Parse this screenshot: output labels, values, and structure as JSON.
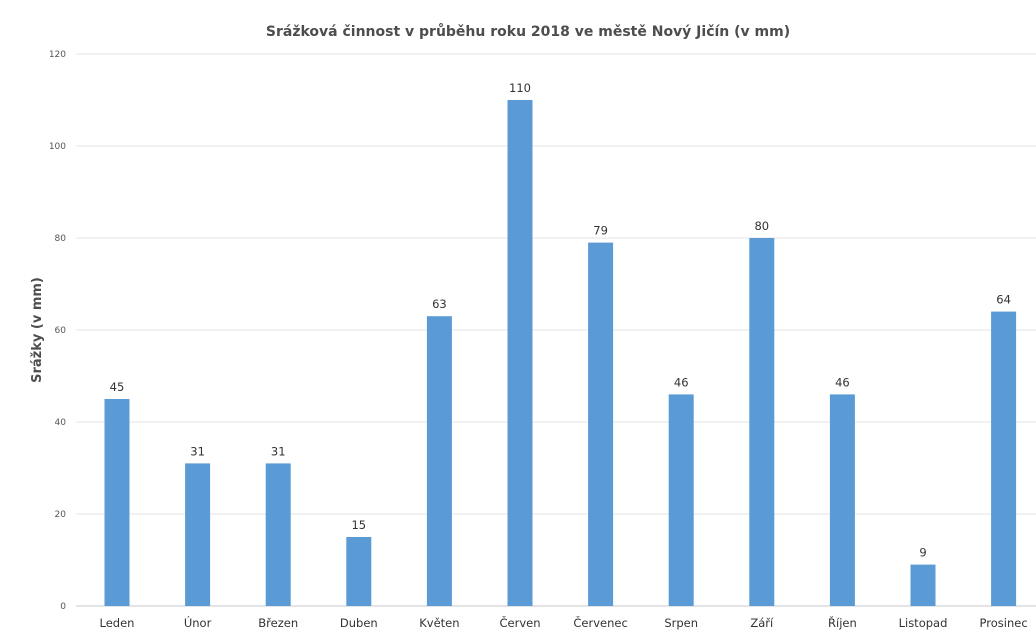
{
  "chart_data": {
    "type": "bar",
    "title": "Srážková činnost v průběhu roku 2018 ve městě Nový Jičín (v mm)",
    "xlabel": "",
    "ylabel": "Srážky (v mm)",
    "categories": [
      "Leden",
      "Únor",
      "Březen",
      "Duben",
      "Květen",
      "Červen",
      "Červenec",
      "Srpen",
      "Září",
      "Říjen",
      "Listopad",
      "Prosinec"
    ],
    "values": [
      45,
      31,
      31,
      15,
      63,
      110,
      79,
      46,
      80,
      46,
      9,
      64
    ],
    "data_labels": [
      "45",
      "31",
      "31",
      "15",
      "63",
      "110",
      "79",
      "46",
      "80",
      "46",
      "9",
      "64"
    ],
    "ylim": [
      0,
      120
    ],
    "yticks": [
      0,
      20,
      40,
      60,
      80,
      100,
      120
    ],
    "grid": true,
    "legend": "none",
    "colors": {
      "bar": "#5b9bd5"
    }
  }
}
